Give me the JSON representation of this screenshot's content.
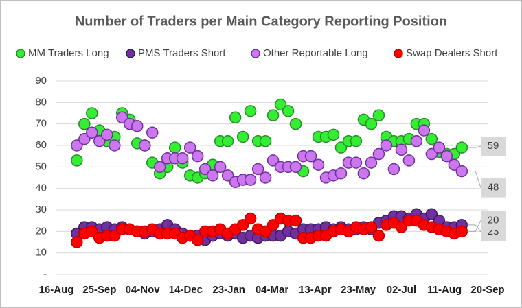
{
  "chart_data": {
    "type": "scatter",
    "title": "Number of Traders per Main Category Reporting Position",
    "x": [
      19,
      26,
      33,
      40,
      47,
      54,
      61,
      68,
      75,
      82,
      89,
      96,
      103,
      110,
      117,
      124,
      131,
      138,
      145,
      152,
      159,
      166,
      173,
      180,
      187,
      194,
      201,
      208,
      215,
      222,
      229,
      236,
      243,
      250,
      257,
      264,
      271,
      278,
      285,
      292,
      299,
      306,
      313,
      320,
      327,
      334,
      341,
      348,
      355,
      362,
      369,
      376
    ],
    "xlim": [
      0,
      400
    ],
    "xticks": [
      {
        "value": 0,
        "label": "16-Aug"
      },
      {
        "value": 40,
        "label": "25-Sep"
      },
      {
        "value": 80,
        "label": "04-Nov"
      },
      {
        "value": 120,
        "label": "14-Dec"
      },
      {
        "value": 160,
        "label": "23-Jan"
      },
      {
        "value": 200,
        "label": "04-Mar"
      },
      {
        "value": 240,
        "label": "13-Apr"
      },
      {
        "value": 280,
        "label": "23-May"
      },
      {
        "value": 320,
        "label": "02-Jul"
      },
      {
        "value": 360,
        "label": "11-Aug"
      },
      {
        "value": 400,
        "label": "20-Sep"
      }
    ],
    "ylim": [
      0,
      90
    ],
    "yticks": [
      {
        "value": 0,
        "label": "-"
      },
      10,
      20,
      30,
      40,
      50,
      60,
      70,
      80,
      90
    ],
    "grid": true,
    "legend": "top",
    "series": [
      {
        "name": "MM Traders Long",
        "color": "#33ee33",
        "values": [
          53,
          70,
          75,
          67,
          62,
          64,
          75,
          72,
          61,
          60,
          52,
          47,
          50,
          59,
          52,
          46,
          45,
          47,
          51,
          62,
          62,
          73,
          64,
          76,
          62,
          62,
          74,
          79,
          76,
          70,
          48,
          55,
          64,
          64,
          65,
          59,
          62,
          62,
          72,
          70,
          74,
          64,
          62,
          62,
          63,
          70,
          70,
          63,
          57,
          56,
          56,
          59
        ]
      },
      {
        "name": "PMS Traders Short",
        "color": "#7030a0",
        "values": [
          19,
          22,
          22,
          21,
          22,
          21,
          22,
          21,
          20,
          19,
          20,
          21,
          23,
          21,
          19,
          18,
          18,
          16,
          18,
          19,
          18,
          19,
          17,
          18,
          17,
          18,
          18,
          18,
          20,
          19,
          21,
          21,
          21,
          22,
          21,
          22,
          21,
          21,
          22,
          21,
          24,
          25,
          27,
          27,
          26,
          28,
          26,
          28,
          25,
          22,
          22,
          23
        ]
      },
      {
        "name": "Other Reportable Long",
        "color": "#cc77ee",
        "values": [
          60,
          63,
          66,
          62,
          65,
          60,
          73,
          70,
          69,
          60,
          66,
          50,
          54,
          54,
          54,
          59,
          55,
          49,
          46,
          50,
          46,
          43,
          44,
          44,
          49,
          45,
          53,
          50,
          50,
          50,
          55,
          55,
          51,
          45,
          46,
          47,
          52,
          52,
          47,
          52,
          56,
          60,
          49,
          58,
          53,
          62,
          67,
          56,
          59,
          55,
          51,
          48
        ]
      },
      {
        "name": "Swap Dealers Short",
        "color": "#ff0000",
        "values": [
          15,
          19,
          20,
          17,
          18,
          18,
          21,
          21,
          20,
          20,
          21,
          19,
          19,
          19,
          17,
          18,
          16,
          20,
          20,
          21,
          19,
          21,
          23,
          26,
          21,
          20,
          23,
          26,
          25,
          25,
          17,
          17,
          18,
          18,
          20,
          21,
          20,
          22,
          21,
          22,
          18,
          23,
          24,
          22,
          25,
          25,
          23,
          22,
          21,
          20,
          19,
          20
        ]
      }
    ]
  }
}
